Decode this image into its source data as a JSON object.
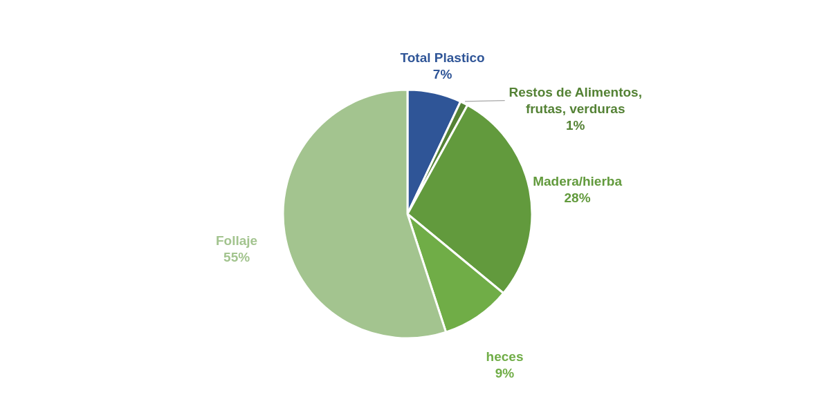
{
  "chart_data": {
    "type": "pie",
    "categories": [
      "Total Plastico",
      "Restos de Alimentos, frutas, verduras",
      "Madera/hierba",
      "heces",
      "Follaje"
    ],
    "values": [
      7,
      1,
      28,
      9,
      55
    ],
    "value_labels": [
      "7%",
      "1%",
      "28%",
      "9%",
      "55%"
    ],
    "colors": [
      "#2f5597",
      "#548235",
      "#629a3d",
      "#70ad47",
      "#a3c48f"
    ]
  }
}
